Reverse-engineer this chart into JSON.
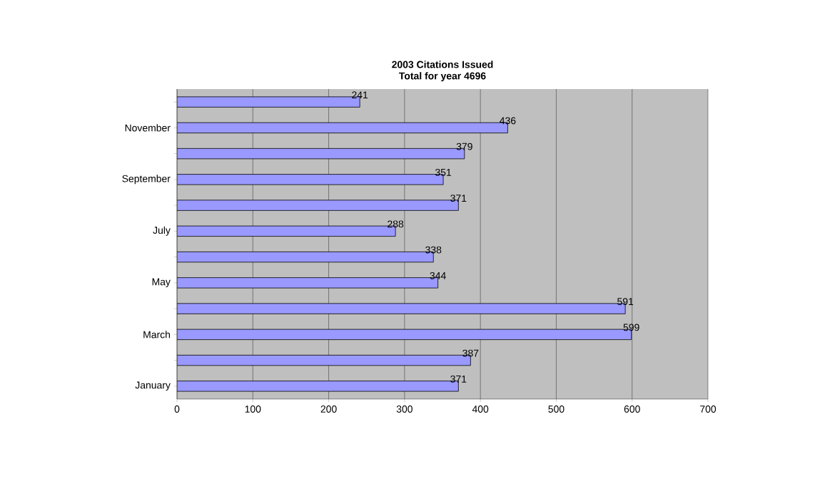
{
  "chart_data": {
    "type": "bar",
    "orientation": "horizontal",
    "title": "2003 Citations Issued",
    "subtitle": "Total for year 4696",
    "categories": [
      null,
      "November",
      null,
      "September",
      null,
      "July",
      null,
      "May",
      null,
      "March",
      null,
      "January"
    ],
    "values": [
      241,
      436,
      379,
      351,
      371,
      288,
      338,
      344,
      591,
      599,
      387,
      371
    ],
    "color": "#9999ff",
    "xlim": [
      0,
      700
    ],
    "xticks": [
      0,
      100,
      200,
      300,
      400,
      500,
      600,
      700
    ],
    "grid": "x",
    "data_labels": true
  }
}
